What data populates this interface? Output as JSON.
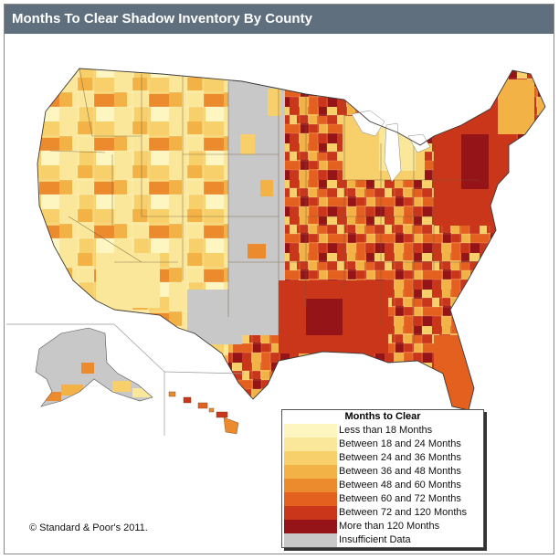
{
  "title": "Months To Clear Shadow Inventory By County",
  "legend": {
    "title": "Months to Clear",
    "items": [
      {
        "label": "Less than 18 Months",
        "color": "#fdf6c0"
      },
      {
        "label": "Between 18 and 24 Months",
        "color": "#fbe79a"
      },
      {
        "label": "Between 24 and 36 Months",
        "color": "#f7cf6b"
      },
      {
        "label": "Between 36 and 48 Months",
        "color": "#f3b246"
      },
      {
        "label": "Between 48 and 60 Months",
        "color": "#ec8a2e"
      },
      {
        "label": "Between 60 and 72 Months",
        "color": "#e4601e"
      },
      {
        "label": "Between 72 and 120 Months",
        "color": "#c9361a"
      },
      {
        "label": "More than 120 Months",
        "color": "#951418"
      },
      {
        "label": "Insufficient Data",
        "color": "#c8c8c8"
      }
    ]
  },
  "copyright": "© Standard & Poor's 2011."
}
